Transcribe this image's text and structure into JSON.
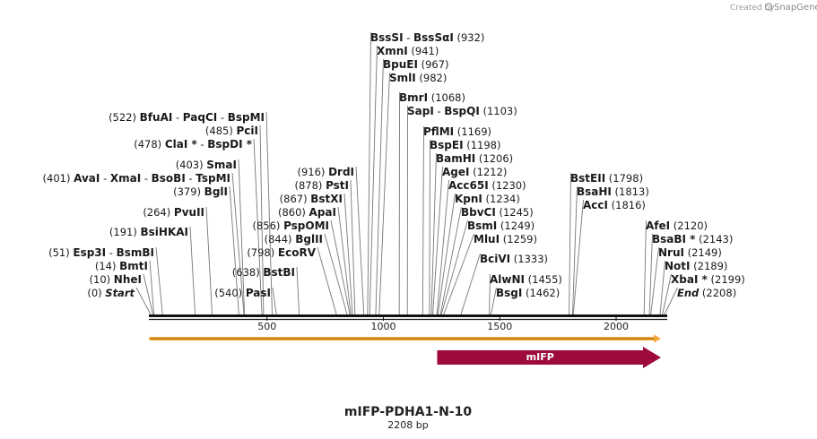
{
  "credit": {
    "text": "Created by",
    "brand": "SnapGene"
  },
  "map": {
    "title": "mIFP-PDHA1-N-10",
    "length_label": "2208 bp",
    "total_bp": 2208,
    "ticks": [
      {
        "bp": 500,
        "label": "500"
      },
      {
        "bp": 1000,
        "label": "1000"
      },
      {
        "bp": 1500,
        "label": "1500"
      },
      {
        "bp": 2000,
        "label": "2000"
      }
    ],
    "feature": {
      "label": "mIFP",
      "start": 1231,
      "end": 2208,
      "color": "#9e0b3a"
    },
    "orf_color": "#f4a63a",
    "sites": [
      {
        "id": "bsssi",
        "parts": [
          {
            "t": "BssSI",
            "c": "enz"
          },
          {
            "t": "  -  ",
            "c": "pos"
          },
          {
            "t": "BssSαI",
            "c": "enz"
          },
          {
            "t": "    (932)",
            "c": "pos"
          }
        ],
        "bp": [
          932,
          932
        ]
      },
      {
        "id": "xmni",
        "parts": [
          {
            "t": "XmnI",
            "c": "enz"
          },
          {
            "t": "   (941)",
            "c": "pos"
          }
        ],
        "bp": [
          941
        ]
      },
      {
        "id": "bpuei",
        "parts": [
          {
            "t": "BpuEI",
            "c": "enz"
          },
          {
            "t": "   (967)",
            "c": "pos"
          }
        ],
        "bp": [
          967
        ]
      },
      {
        "id": "smli",
        "parts": [
          {
            "t": "SmlI",
            "c": "enz"
          },
          {
            "t": "   (982)",
            "c": "pos"
          }
        ],
        "bp": [
          982
        ]
      },
      {
        "id": "bmri",
        "parts": [
          {
            "t": "BmrI",
            "c": "enz"
          },
          {
            "t": "   (1068)",
            "c": "pos"
          }
        ],
        "bp": [
          1068
        ]
      },
      {
        "id": "sapi",
        "parts": [
          {
            "t": "SapI",
            "c": "enz"
          },
          {
            "t": "  -  ",
            "c": "pos"
          },
          {
            "t": "BspQI",
            "c": "enz"
          },
          {
            "t": "   (1103)",
            "c": "pos"
          }
        ],
        "bp": [
          1103,
          1103
        ]
      },
      {
        "id": "pflmi",
        "parts": [
          {
            "t": "PflMI",
            "c": "enz"
          },
          {
            "t": "   (1169)",
            "c": "pos"
          }
        ],
        "bp": [
          1169
        ]
      },
      {
        "id": "bspei",
        "parts": [
          {
            "t": "BspEI",
            "c": "enz"
          },
          {
            "t": "   (1198)",
            "c": "pos"
          }
        ],
        "bp": [
          1198
        ]
      },
      {
        "id": "bamhi",
        "parts": [
          {
            "t": "BamHI",
            "c": "enz"
          },
          {
            "t": "   (1206)",
            "c": "pos"
          }
        ],
        "bp": [
          1206
        ]
      },
      {
        "id": "agei",
        "parts": [
          {
            "t": "AgeI",
            "c": "enz"
          },
          {
            "t": "   (1212)",
            "c": "pos"
          }
        ],
        "bp": [
          1212
        ]
      },
      {
        "id": "acc65i",
        "parts": [
          {
            "t": "Acc65I",
            "c": "enz"
          },
          {
            "t": "   (1230)",
            "c": "pos"
          }
        ],
        "bp": [
          1230
        ]
      },
      {
        "id": "kpni",
        "parts": [
          {
            "t": "KpnI",
            "c": "enz"
          },
          {
            "t": "   (1234)",
            "c": "pos"
          }
        ],
        "bp": [
          1234
        ]
      },
      {
        "id": "bbvci",
        "parts": [
          {
            "t": "BbvCI",
            "c": "enz"
          },
          {
            "t": "   (1245)",
            "c": "pos"
          }
        ],
        "bp": [
          1245
        ]
      },
      {
        "id": "bsmi",
        "parts": [
          {
            "t": "BsmI",
            "c": "enz"
          },
          {
            "t": "   (1249)",
            "c": "pos"
          }
        ],
        "bp": [
          1249
        ]
      },
      {
        "id": "mlui",
        "parts": [
          {
            "t": "MluI",
            "c": "enz"
          },
          {
            "t": "   (1259)",
            "c": "pos"
          }
        ],
        "bp": [
          1259
        ]
      },
      {
        "id": "bcivi",
        "parts": [
          {
            "t": "BciVI",
            "c": "enz"
          },
          {
            "t": "   (1333)",
            "c": "pos"
          }
        ],
        "bp": [
          1333
        ]
      },
      {
        "id": "alwni",
        "parts": [
          {
            "t": "AlwNI",
            "c": "enz"
          },
          {
            "t": "   (1455)",
            "c": "pos"
          }
        ],
        "bp": [
          1455
        ]
      },
      {
        "id": "bsgi",
        "parts": [
          {
            "t": "BsgI",
            "c": "enz"
          },
          {
            "t": "   (1462)",
            "c": "pos"
          }
        ],
        "bp": [
          1462
        ]
      },
      {
        "id": "bfuai",
        "parts": [
          {
            "t": "(522)  ",
            "c": "pos"
          },
          {
            "t": "BfuAI",
            "c": "enz"
          },
          {
            "t": "  -  ",
            "c": "pos"
          },
          {
            "t": "PaqCI",
            "c": "enz"
          },
          {
            "t": "  -  ",
            "c": "pos"
          },
          {
            "t": "BspMI",
            "c": "enz"
          }
        ],
        "bp": [
          522,
          522,
          522
        ]
      },
      {
        "id": "pcii",
        "parts": [
          {
            "t": "(485)  ",
            "c": "pos"
          },
          {
            "t": "PciI",
            "c": "enz"
          }
        ],
        "bp": [
          485
        ]
      },
      {
        "id": "clai",
        "parts": [
          {
            "t": "(478)  ",
            "c": "pos"
          },
          {
            "t": "ClaI *",
            "c": "enz"
          },
          {
            "t": "  -  ",
            "c": "pos"
          },
          {
            "t": "BspDI *",
            "c": "enz"
          }
        ],
        "bp": [
          478,
          478
        ]
      },
      {
        "id": "smai",
        "parts": [
          {
            "t": "(403)  ",
            "c": "pos"
          },
          {
            "t": "SmaI",
            "c": "enz"
          }
        ],
        "bp": [
          403
        ]
      },
      {
        "id": "avai",
        "parts": [
          {
            "t": "(401)  ",
            "c": "pos"
          },
          {
            "t": "AvaI",
            "c": "enz"
          },
          {
            "t": "  -  ",
            "c": "pos"
          },
          {
            "t": "XmaI",
            "c": "enz"
          },
          {
            "t": "  -  ",
            "c": "pos"
          },
          {
            "t": "BsoBI",
            "c": "enz"
          },
          {
            "t": "  -  ",
            "c": "pos"
          },
          {
            "t": "TspMI",
            "c": "enz"
          }
        ],
        "bp": [
          401,
          401,
          401,
          401
        ]
      },
      {
        "id": "bgli",
        "parts": [
          {
            "t": "(379)  ",
            "c": "pos"
          },
          {
            "t": "BglI",
            "c": "enz"
          }
        ],
        "bp": [
          379
        ]
      },
      {
        "id": "pvuii",
        "parts": [
          {
            "t": "(264)  ",
            "c": "pos"
          },
          {
            "t": "PvuII",
            "c": "enz"
          }
        ],
        "bp": [
          264
        ]
      },
      {
        "id": "bsihkai",
        "parts": [
          {
            "t": "(191)  ",
            "c": "pos"
          },
          {
            "t": "BsiHKAI",
            "c": "enz"
          }
        ],
        "bp": [
          191
        ]
      },
      {
        "id": "esp3i",
        "parts": [
          {
            "t": "(51)  ",
            "c": "pos"
          },
          {
            "t": "Esp3I",
            "c": "enz"
          },
          {
            "t": "  -  ",
            "c": "pos"
          },
          {
            "t": "BsmBI",
            "c": "enz"
          }
        ],
        "bp": [
          51,
          51
        ]
      },
      {
        "id": "bmti",
        "parts": [
          {
            "t": "(14)  ",
            "c": "pos"
          },
          {
            "t": "BmtI",
            "c": "enz"
          }
        ],
        "bp": [
          14
        ]
      },
      {
        "id": "nhei",
        "parts": [
          {
            "t": "(10)  ",
            "c": "pos"
          },
          {
            "t": "NheI",
            "c": "enz"
          }
        ],
        "bp": [
          10
        ]
      },
      {
        "id": "start",
        "parts": [
          {
            "t": "(0)  ",
            "c": "pos"
          },
          {
            "t": "Start",
            "c": "it"
          }
        ],
        "bp": [
          0
        ]
      },
      {
        "id": "drdi",
        "parts": [
          {
            "t": "(916)  ",
            "c": "pos"
          },
          {
            "t": "DrdI",
            "c": "enz"
          }
        ],
        "bp": [
          916
        ]
      },
      {
        "id": "psti",
        "parts": [
          {
            "t": "(878)  ",
            "c": "pos"
          },
          {
            "t": "PstI",
            "c": "enz"
          }
        ],
        "bp": [
          878
        ]
      },
      {
        "id": "bstxi",
        "parts": [
          {
            "t": "(867)  ",
            "c": "pos"
          },
          {
            "t": "BstXI",
            "c": "enz"
          }
        ],
        "bp": [
          867
        ]
      },
      {
        "id": "apai",
        "parts": [
          {
            "t": "(860)  ",
            "c": "pos"
          },
          {
            "t": "ApaI",
            "c": "enz"
          }
        ],
        "bp": [
          860
        ]
      },
      {
        "id": "pspomi",
        "parts": [
          {
            "t": "(856)  ",
            "c": "pos"
          },
          {
            "t": "PspOMI",
            "c": "enz"
          }
        ],
        "bp": [
          856
        ]
      },
      {
        "id": "bglii",
        "parts": [
          {
            "t": "(844)  ",
            "c": "pos"
          },
          {
            "t": "BglII",
            "c": "enz"
          }
        ],
        "bp": [
          844
        ]
      },
      {
        "id": "ecorv",
        "parts": [
          {
            "t": "(798)  ",
            "c": "pos"
          },
          {
            "t": "EcoRV",
            "c": "enz"
          }
        ],
        "bp": [
          798
        ]
      },
      {
        "id": "bstbi",
        "parts": [
          {
            "t": "(638)  ",
            "c": "pos"
          },
          {
            "t": "BstBI",
            "c": "enz"
          }
        ],
        "bp": [
          638
        ]
      },
      {
        "id": "pasi",
        "parts": [
          {
            "t": "(540)  ",
            "c": "pos"
          },
          {
            "t": "PasI",
            "c": "enz"
          }
        ],
        "bp": [
          540
        ]
      },
      {
        "id": "bsteii",
        "parts": [
          {
            "t": "BstEII",
            "c": "enz"
          },
          {
            "t": "   (1798)",
            "c": "pos"
          }
        ],
        "bp": [
          1798
        ]
      },
      {
        "id": "bsahi",
        "parts": [
          {
            "t": "BsaHI",
            "c": "enz"
          },
          {
            "t": "   (1813)",
            "c": "pos"
          }
        ],
        "bp": [
          1813
        ]
      },
      {
        "id": "acci",
        "parts": [
          {
            "t": "AccI",
            "c": "enz"
          },
          {
            "t": "   (1816)",
            "c": "pos"
          }
        ],
        "bp": [
          1816
        ]
      },
      {
        "id": "afei",
        "parts": [
          {
            "t": "AfeI",
            "c": "enz"
          },
          {
            "t": "   (2120)",
            "c": "pos"
          }
        ],
        "bp": [
          2120
        ]
      },
      {
        "id": "bsabi",
        "parts": [
          {
            "t": "BsaBI *",
            "c": "enz"
          },
          {
            "t": "   (2143)",
            "c": "pos"
          }
        ],
        "bp": [
          2143
        ]
      },
      {
        "id": "nrui",
        "parts": [
          {
            "t": "NruI",
            "c": "enz"
          },
          {
            "t": "   (2149)",
            "c": "pos"
          }
        ],
        "bp": [
          2149
        ]
      },
      {
        "id": "noti",
        "parts": [
          {
            "t": "NotI",
            "c": "enz"
          },
          {
            "t": "   (2189)",
            "c": "pos"
          }
        ],
        "bp": [
          2189
        ]
      },
      {
        "id": "xbai",
        "parts": [
          {
            "t": "XbaI *",
            "c": "enz"
          },
          {
            "t": "   (2199)",
            "c": "pos"
          }
        ],
        "bp": [
          2199
        ]
      },
      {
        "id": "end",
        "parts": [
          {
            "t": "End",
            "c": "it"
          },
          {
            "t": "   (2208)",
            "c": "pos"
          }
        ],
        "bp": [
          2208
        ]
      }
    ]
  }
}
